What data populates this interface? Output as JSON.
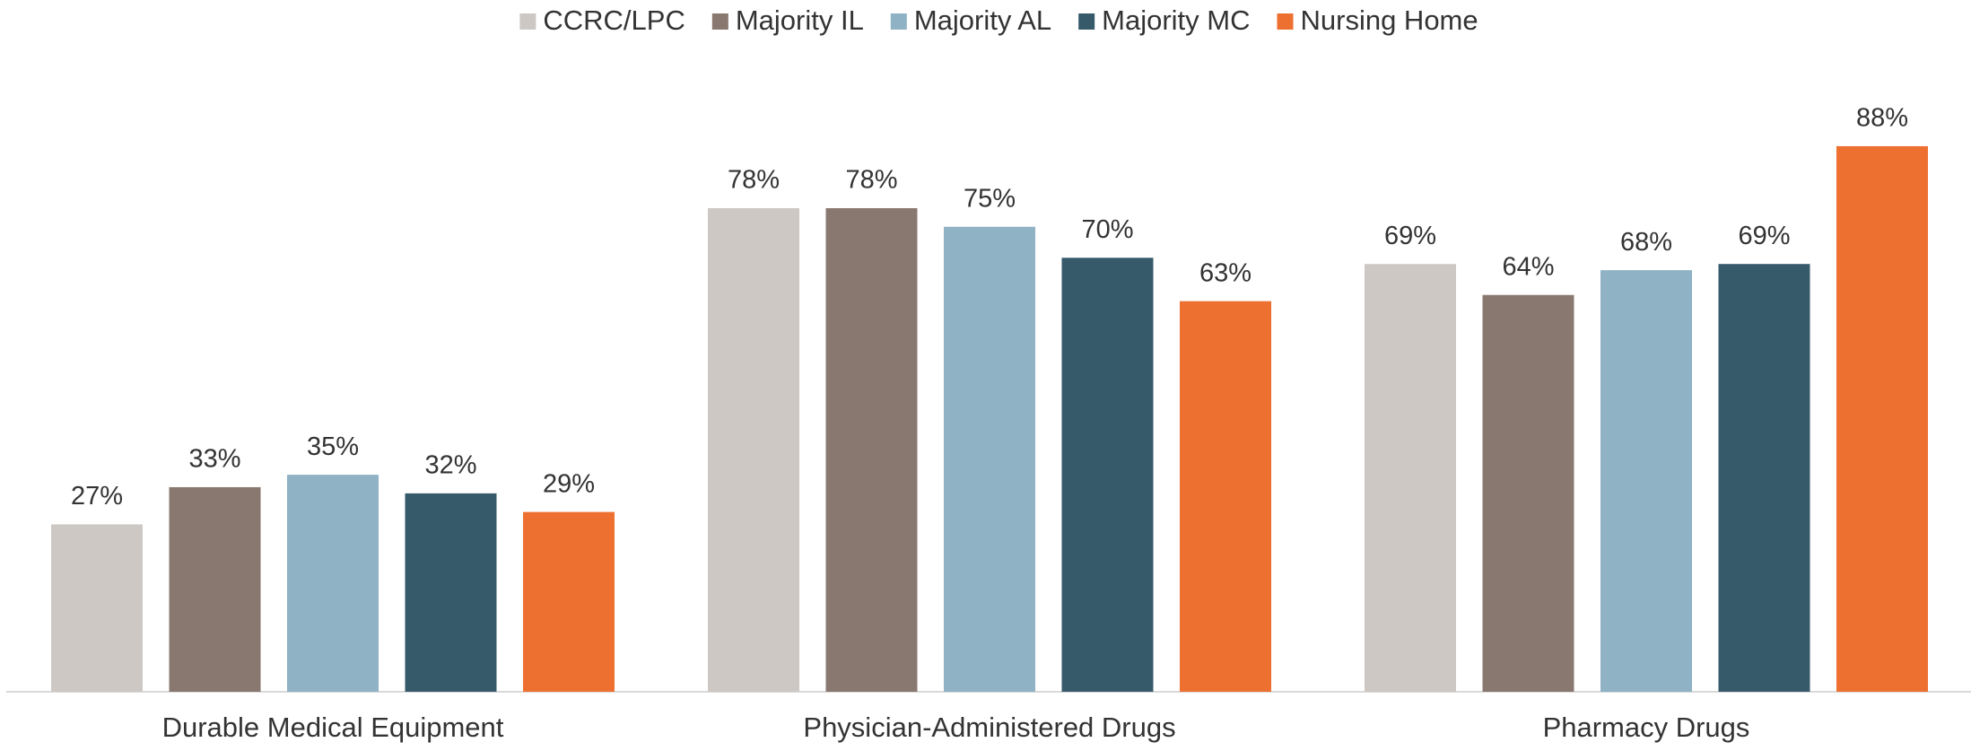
{
  "chart_data": {
    "type": "bar",
    "categories": [
      "Durable Medical Equipment",
      "Physician-Administered Drugs",
      "Pharmacy Drugs"
    ],
    "series": [
      {
        "name": "CCRC/LPC",
        "color": "#cdc8c4",
        "values": [
          27,
          78,
          69
        ],
        "value_labels": [
          "27%",
          "78%",
          "69%"
        ]
      },
      {
        "name": "Majority IL",
        "color": "#89786f",
        "values": [
          33,
          78,
          64
        ],
        "value_labels": [
          "33%",
          "78%",
          "64%"
        ]
      },
      {
        "name": "Majority AL",
        "color": "#8fb2c5",
        "values": [
          35,
          75,
          68
        ],
        "value_labels": [
          "35%",
          "75%",
          "68%"
        ]
      },
      {
        "name": "Majority MC",
        "color": "#375a6b",
        "values": [
          32,
          70,
          69
        ],
        "value_labels": [
          "32%",
          "70%",
          "69%"
        ]
      },
      {
        "name": "Nursing Home",
        "color": "#ed7030",
        "values": [
          29,
          63,
          88
        ],
        "value_labels": [
          "29%",
          "63%",
          "88%"
        ]
      }
    ],
    "ylim": [
      0,
      100
    ],
    "legend": "top"
  }
}
